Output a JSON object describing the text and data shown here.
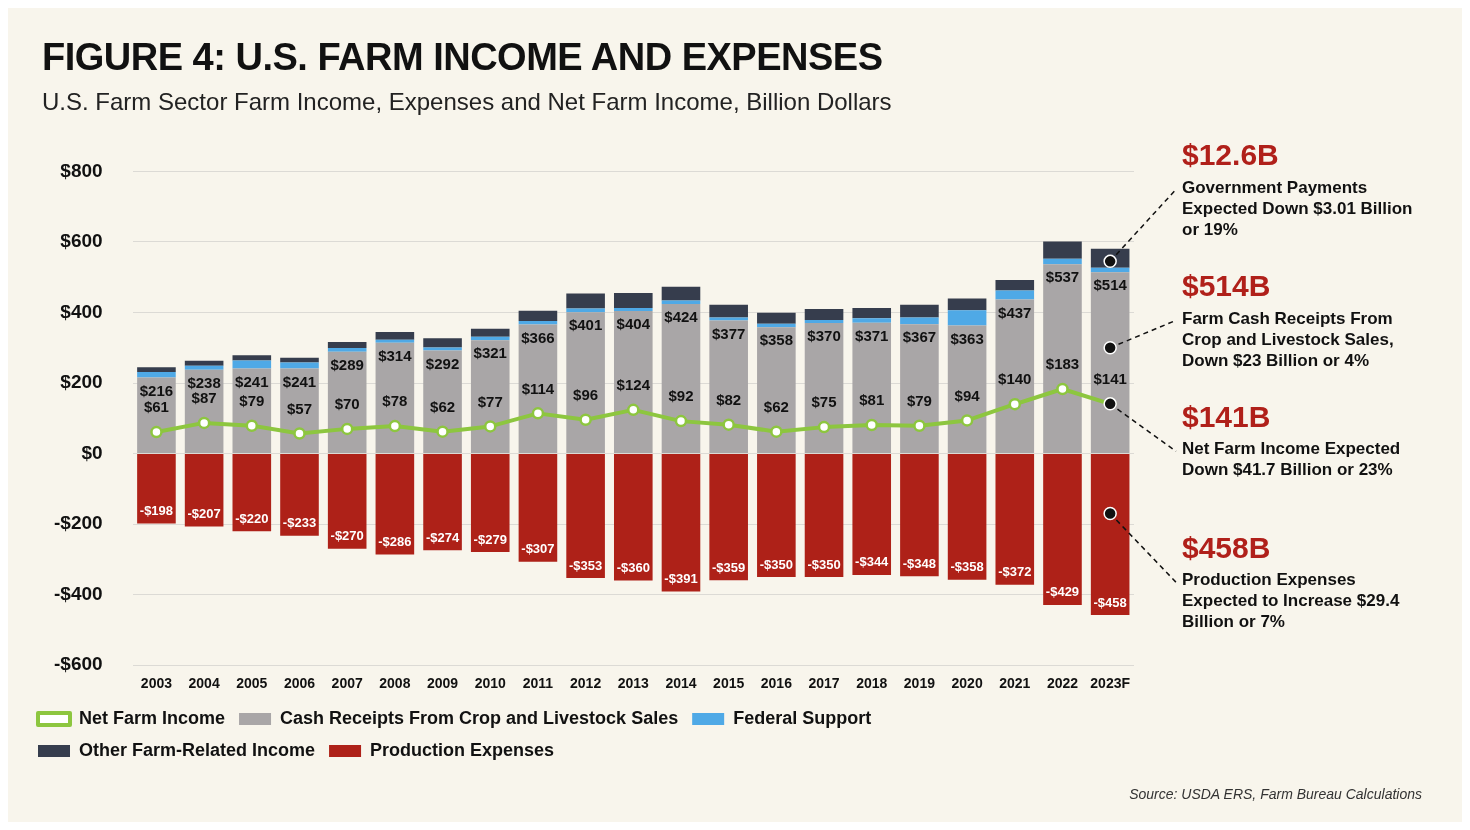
{
  "chart_data": {
    "type": "bar",
    "title": "FIGURE 4: U.S. FARM INCOME AND EXPENSES",
    "subtitle": "U.S. Farm Sector Farm Income, Expenses and Net Farm Income, Billion Dollars",
    "categories": [
      "2003",
      "2004",
      "2005",
      "2006",
      "2007",
      "2008",
      "2009",
      "2010",
      "2011",
      "2012",
      "2013",
      "2014",
      "2015",
      "2016",
      "2017",
      "2018",
      "2019",
      "2020",
      "2021",
      "2022",
      "2023F"
    ],
    "stacked": true,
    "grid": "y",
    "legend": "bottom",
    "marker": "circle",
    "ylim": [
      -600,
      800
    ],
    "yticks": [
      {
        "value": -600,
        "label": "-$600"
      },
      {
        "value": -400,
        "label": "-$400"
      },
      {
        "value": -200,
        "label": "-$200"
      },
      {
        "value": 0,
        "label": "$0"
      },
      {
        "value": 200,
        "label": "$200"
      },
      {
        "value": 400,
        "label": "$400"
      },
      {
        "value": 600,
        "label": "$600"
      },
      {
        "value": 800,
        "label": "$800"
      }
    ],
    "series": [
      {
        "name": "Cash Receipts From Crop and Livestock Sales",
        "color": "#a9a6a7",
        "values": [
          216,
          238,
          241,
          241,
          289,
          314,
          292,
          321,
          366,
          401,
          404,
          424,
          377,
          358,
          370,
          371,
          367,
          363,
          437,
          537,
          514
        ],
        "value_labels": [
          "$216",
          "$238",
          "$241",
          "$241",
          "$289",
          "$314",
          "$292",
          "$321",
          "$366",
          "$401",
          "$404",
          "$424",
          "$377",
          "$358",
          "$370",
          "$371",
          "$367",
          "$363",
          "$437",
          "$537",
          "$514"
        ]
      },
      {
        "name": "Federal Support",
        "color": "#4fa9e6",
        "values": [
          15,
          11,
          23,
          17,
          10,
          9,
          9,
          10,
          10,
          10,
          9,
          10,
          9,
          10,
          9,
          13,
          19,
          43,
          25,
          15,
          13
        ]
      },
      {
        "name": "Other Farm-Related Income",
        "color": "#363d4d",
        "values": [
          14,
          14,
          15,
          14,
          17,
          22,
          26,
          23,
          29,
          43,
          42,
          39,
          36,
          31,
          31,
          29,
          36,
          34,
          30,
          49,
          54
        ]
      },
      {
        "name": "Production Expenses",
        "color": "#ae2118",
        "values": [
          -198,
          -207,
          -220,
          -233,
          -270,
          -286,
          -274,
          -279,
          -307,
          -353,
          -360,
          -391,
          -359,
          -350,
          -350,
          -344,
          -348,
          -358,
          -372,
          -429,
          -458
        ],
        "value_labels": [
          "-$198",
          "-$207",
          "-$220",
          "-$233",
          "-$270",
          "-$286",
          "-$274",
          "-$279",
          "-$307",
          "-$353",
          "-$360",
          "-$391",
          "-$359",
          "-$350",
          "-$350",
          "-$344",
          "-$348",
          "-$358",
          "-$372",
          "-$429",
          "-$458"
        ]
      },
      {
        "name": "Net Farm Income",
        "type": "line",
        "color": "#8dc63f",
        "values": [
          61,
          87,
          79,
          57,
          70,
          78,
          62,
          77,
          114,
          96,
          124,
          92,
          82,
          62,
          75,
          81,
          79,
          94,
          140,
          183,
          141
        ],
        "value_labels": [
          "$61",
          "$87",
          "$79",
          "$57",
          "$70",
          "$78",
          "$62",
          "$77",
          "$114",
          "$96",
          "$124",
          "$92",
          "$82",
          "$62",
          "$75",
          "$81",
          "$79",
          "$94",
          "$140",
          "$183",
          "$141"
        ]
      }
    ],
    "annotations": [
      {
        "text": "$12.6B Government Payments Expected Down $3.01 Billion or 19%",
        "x": "2023F",
        "y": 545
      },
      {
        "text": "$514B Farm Cash Receipts From Crop and Livestock Sales, Down $23 Billion or 4%",
        "x": "2023F",
        "y": 300
      },
      {
        "text": "$141B Net Farm Income Expected Down $41.7 Billion or 23%",
        "x": "2023F",
        "y": 141
      },
      {
        "text": "$458B Production Expenses Expected to Increase $29.4 Billion or 7%",
        "x": "2023F",
        "y": -170
      },
      "Source: USDA ERS, Farm Bureau Calculations"
    ]
  }
}
